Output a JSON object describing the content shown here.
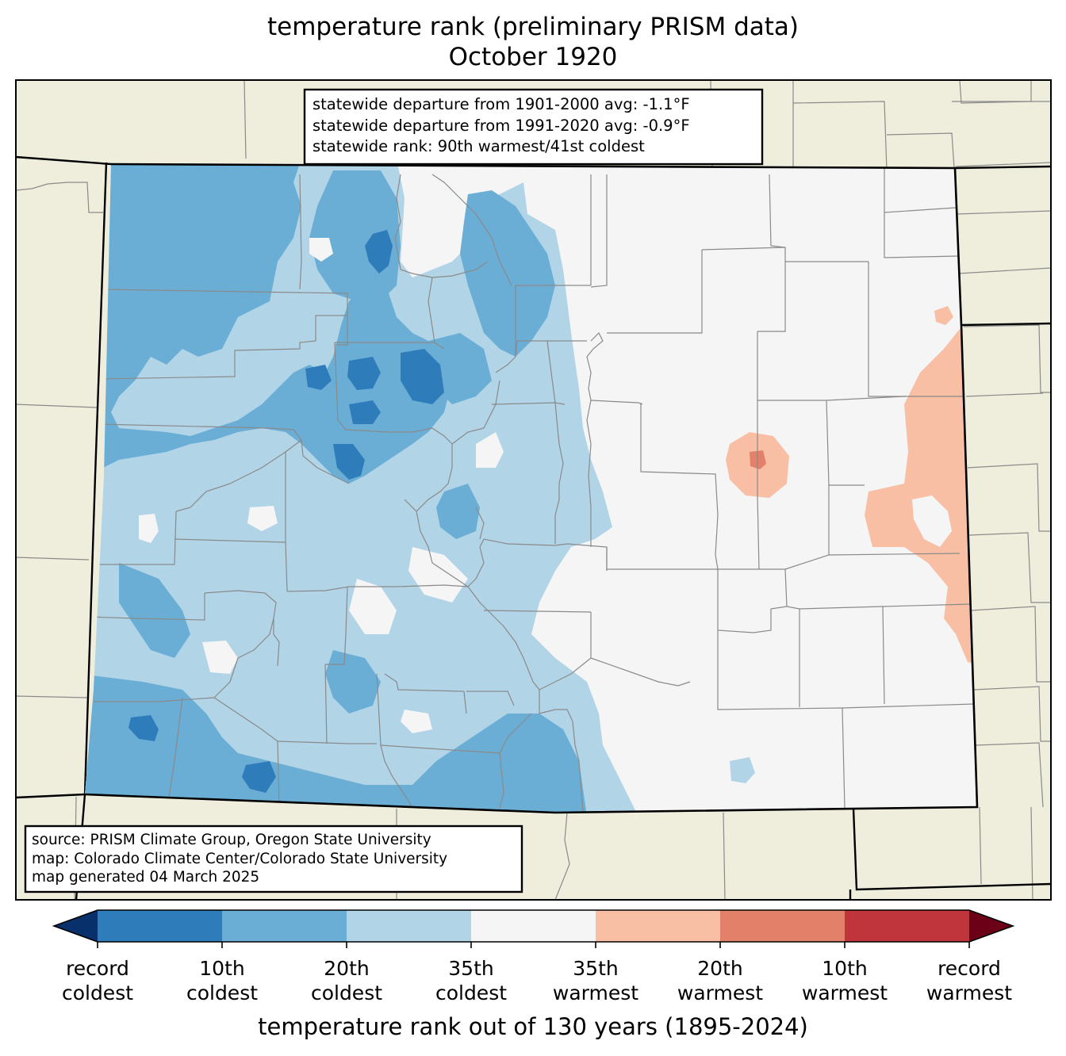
{
  "title": {
    "line1": "temperature rank (preliminary PRISM data)",
    "line2": "October 1920"
  },
  "stats_box": {
    "lines": [
      "statewide departure from 1901-2000 avg: -1.1°F",
      "statewide departure from 1991-2020 avg: -0.9°F",
      "statewide rank: 90th warmest/41st coldest"
    ]
  },
  "source_box": {
    "lines": [
      "source: PRISM Climate Group, Oregon State University",
      "map: Colorado Climate Center/Colorado State University",
      "map generated 04 March 2025"
    ]
  },
  "colorbar": {
    "label": "temperature rank out of 130 years (1895-2024)",
    "colors": {
      "below_min": "#08306b",
      "bins": [
        "#2f7cbb",
        "#6aaed6",
        "#b1d4e7",
        "#f5f5f5",
        "#f8bfa5",
        "#e2806a",
        "#c0353b"
      ],
      "above_max": "#6b0017"
    },
    "ticks": [
      {
        "line1": "record",
        "line2": "coldest"
      },
      {
        "line1": "10th",
        "line2": "coldest"
      },
      {
        "line1": "20th",
        "line2": "coldest"
      },
      {
        "line1": "35th",
        "line2": "coldest"
      },
      {
        "line1": "35th",
        "line2": "warmest"
      },
      {
        "line1": "20th",
        "line2": "warmest"
      },
      {
        "line1": "10th",
        "line2": "warmest"
      },
      {
        "line1": "record",
        "line2": "warmest"
      }
    ]
  },
  "map_colors": {
    "neighbor_land": "#efeedd",
    "border": "#000000",
    "county_line": "#8a8a8a"
  }
}
